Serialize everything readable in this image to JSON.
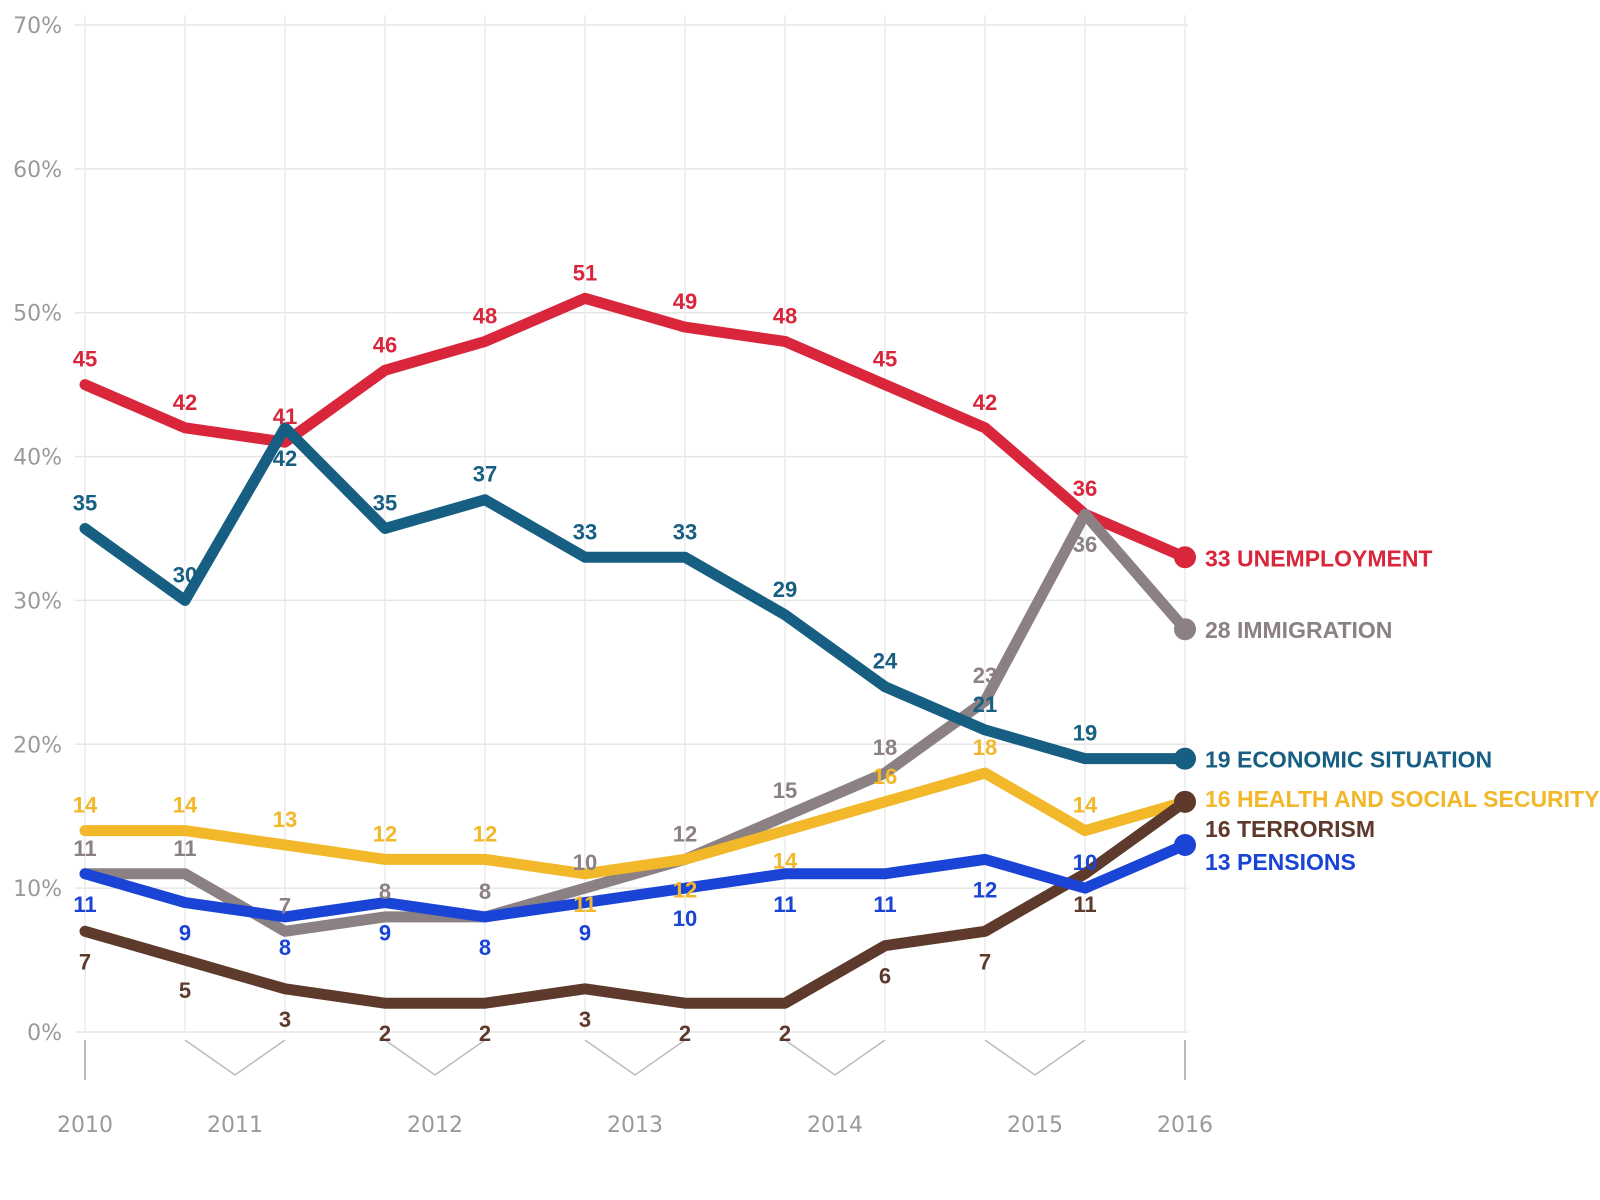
{
  "chart_data": {
    "type": "line",
    "title": "",
    "xlabel": "",
    "ylabel": "",
    "ylim": [
      0,
      70
    ],
    "yticks": [
      "0%",
      "10%",
      "20%",
      "30%",
      "40%",
      "50%",
      "60%",
      "70%"
    ],
    "grid": true,
    "x": [
      0,
      1,
      2,
      3,
      4,
      5,
      6,
      7,
      8,
      9,
      10,
      11
    ],
    "xticks": [
      {
        "label": "2010",
        "at": 0
      },
      {
        "label": "2011",
        "at": 1.5
      },
      {
        "label": "2012",
        "at": 3.5
      },
      {
        "label": "2013",
        "at": 5.5
      },
      {
        "label": "2014",
        "at": 7.5
      },
      {
        "label": "2015",
        "at": 9.5
      },
      {
        "label": "2016",
        "at": 11
      }
    ],
    "legend": "end-of-line labels, right",
    "series": [
      {
        "name": "UNEMPLOYMENT",
        "end_label": "33 UNEMPLOYMENT",
        "color": "#d9263b",
        "values": [
          45,
          42,
          41,
          46,
          48,
          51,
          49,
          48,
          45,
          42,
          36,
          33
        ]
      },
      {
        "name": "IMMIGRATION",
        "end_label": "28 IMMIGRATION",
        "color": "#8b8083",
        "values": [
          11,
          11,
          7,
          8,
          8,
          10,
          12,
          15,
          18,
          23,
          36,
          28
        ]
      },
      {
        "name": "ECONOMIC SITUATION",
        "end_label": "19 ECONOMIC SITUATION",
        "color": "#175f82",
        "values": [
          35,
          30,
          42,
          35,
          37,
          33,
          33,
          29,
          24,
          21,
          19,
          19
        ]
      },
      {
        "name": "HEALTH AND SOCIAL SECURITY",
        "end_label": "16 HEALTH AND SOCIAL SECURITY",
        "color": "#f2b82a",
        "values": [
          14,
          14,
          13,
          12,
          12,
          11,
          12,
          14,
          16,
          18,
          14,
          16
        ]
      },
      {
        "name": "TERRORISM",
        "end_label": "16 TERRORISM",
        "color": "#5e3a2c",
        "values": [
          7,
          5,
          3,
          2,
          2,
          3,
          2,
          2,
          6,
          7,
          11,
          16
        ]
      },
      {
        "name": "PENSIONS",
        "end_label": "13 PENSIONS",
        "color": "#1a44d6",
        "values": [
          11,
          9,
          8,
          9,
          8,
          9,
          10,
          11,
          11,
          12,
          10,
          13
        ]
      }
    ]
  }
}
